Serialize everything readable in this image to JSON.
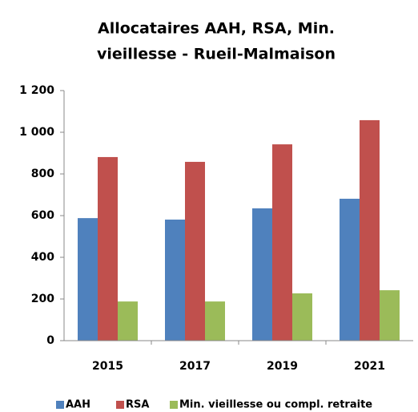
{
  "chart_data": {
    "type": "bar",
    "title": [
      "Allocataires AAH, RSA, Min.",
      "vieillesse - Rueil-Malmaison"
    ],
    "categories": [
      "2015",
      "2017",
      "2019",
      "2021"
    ],
    "series": [
      {
        "name": "AAH",
        "color": "#4f81bd",
        "values": [
          588,
          581,
          635,
          681
        ]
      },
      {
        "name": "RSA",
        "color": "#c0504d",
        "values": [
          881,
          858,
          942,
          1058
        ]
      },
      {
        "name": "Min. vieillesse ou compl. retraite",
        "color": "#9bbb59",
        "values": [
          188,
          188,
          227,
          242
        ]
      }
    ],
    "ylim": [
      0,
      1200
    ],
    "yticks": [
      0,
      200,
      400,
      600,
      800,
      {
        "value": 1000,
        "label": "1 000"
      },
      {
        "value": 1200,
        "label": "1 200"
      }
    ],
    "grid": false,
    "legend": "bottom"
  }
}
